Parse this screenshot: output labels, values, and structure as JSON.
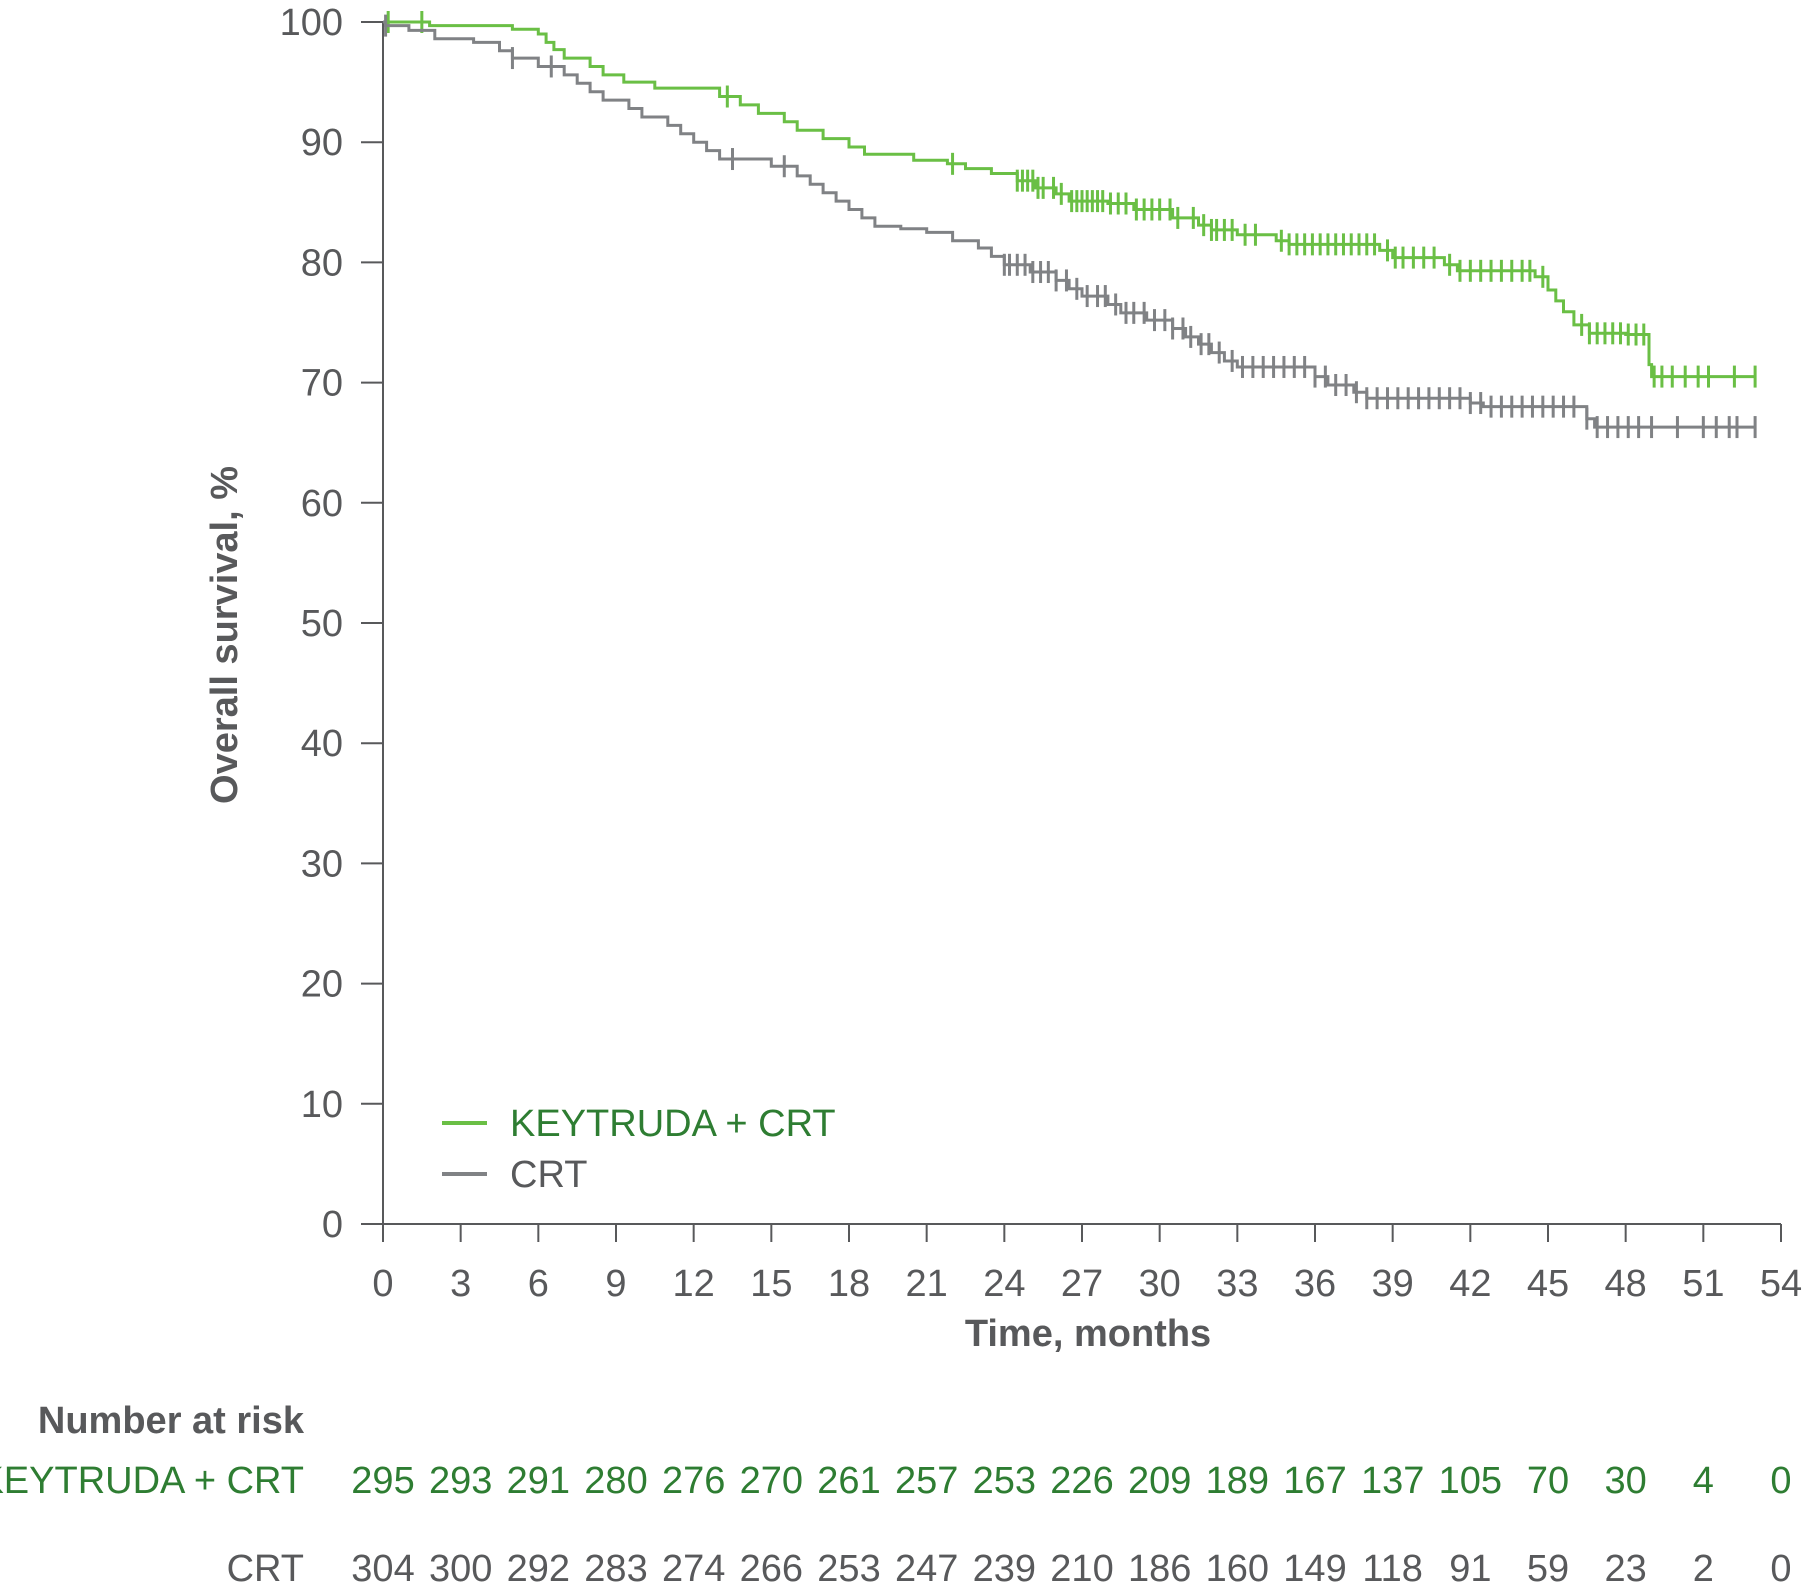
{
  "chart_data": {
    "type": "line",
    "title": "",
    "xlabel": "Time, months",
    "ylabel": "Overall survival, %",
    "xlim": [
      0,
      54
    ],
    "ylim": [
      0,
      100
    ],
    "xticks": [
      0,
      3,
      6,
      9,
      12,
      15,
      18,
      21,
      24,
      27,
      30,
      33,
      36,
      39,
      42,
      45,
      48,
      51,
      54
    ],
    "yticks": [
      0,
      10,
      20,
      30,
      40,
      50,
      60,
      70,
      80,
      90,
      100
    ],
    "legend": {
      "placement": "bottom-left"
    },
    "series": [
      {
        "name": "KEYTRUDA + CRT",
        "color": "#6abf45",
        "steps": [
          [
            0,
            100
          ],
          [
            1.5,
            100
          ],
          [
            1.8,
            99.7
          ],
          [
            5,
            99.4
          ],
          [
            6,
            99
          ],
          [
            6.3,
            98.3
          ],
          [
            6.6,
            97.7
          ],
          [
            7,
            97
          ],
          [
            8,
            96.3
          ],
          [
            8.5,
            95.6
          ],
          [
            9.3,
            95
          ],
          [
            10.5,
            94.5
          ],
          [
            13,
            93.8
          ],
          [
            13.8,
            93.1
          ],
          [
            14.5,
            92.4
          ],
          [
            15.5,
            91.7
          ],
          [
            16,
            91
          ],
          [
            17,
            90.3
          ],
          [
            18,
            89.6
          ],
          [
            18.6,
            89
          ],
          [
            20.5,
            88.5
          ],
          [
            21.8,
            88.2
          ],
          [
            22.5,
            87.8
          ],
          [
            23.5,
            87.4
          ],
          [
            24.5,
            86.8
          ],
          [
            25.2,
            86.2
          ],
          [
            26,
            85.7
          ],
          [
            26.5,
            85.1
          ],
          [
            28,
            84.9
          ],
          [
            29,
            84.4
          ],
          [
            30.5,
            83.7
          ],
          [
            31.5,
            83.1
          ],
          [
            32,
            82.7
          ],
          [
            33,
            82.3
          ],
          [
            34.5,
            81.8
          ],
          [
            35,
            81.5
          ],
          [
            38.5,
            81
          ],
          [
            39,
            80.4
          ],
          [
            41,
            79.8
          ],
          [
            41.5,
            79.3
          ],
          [
            44.5,
            78.8
          ],
          [
            45,
            77.7
          ],
          [
            45.3,
            76.8
          ],
          [
            45.6,
            75.9
          ],
          [
            46,
            74.8
          ],
          [
            46.6,
            74.1
          ],
          [
            48,
            74
          ],
          [
            48.9,
            71.5
          ],
          [
            49,
            70.5
          ],
          [
            53,
            70.5
          ]
        ],
        "censor": [
          0.2,
          1.5,
          13.3,
          22,
          24.5,
          24.7,
          24.9,
          25.1,
          25.3,
          25.5,
          25.9,
          26.2,
          26.6,
          26.8,
          27.0,
          27.2,
          27.4,
          27.6,
          27.8,
          28.1,
          28.4,
          28.7,
          29.1,
          29.4,
          29.7,
          30.0,
          30.4,
          30.7,
          31.3,
          31.7,
          32.0,
          32.2,
          32.5,
          32.8,
          33.3,
          33.7,
          34.7,
          35.0,
          35.3,
          35.6,
          35.9,
          36.2,
          36.5,
          36.8,
          37.1,
          37.4,
          37.7,
          38.0,
          38.3,
          38.8,
          39.1,
          39.4,
          39.8,
          40.2,
          40.6,
          41.2,
          41.6,
          42.0,
          42.4,
          42.8,
          43.2,
          43.6,
          44.0,
          44.3,
          44.8,
          46.3,
          46.6,
          46.9,
          47.2,
          47.5,
          47.8,
          48.1,
          48.4,
          48.7,
          49.1,
          49.4,
          49.8,
          50.3,
          50.8,
          51.2,
          52.2,
          53.0
        ]
      },
      {
        "name": "CRT",
        "color": "#808285",
        "steps": [
          [
            0,
            100
          ],
          [
            0.1,
            99.7
          ],
          [
            1,
            99.3
          ],
          [
            2,
            98.6
          ],
          [
            3.5,
            98.3
          ],
          [
            4.5,
            97.6
          ],
          [
            5,
            97
          ],
          [
            6,
            96.3
          ],
          [
            7,
            95.6
          ],
          [
            7.5,
            94.9
          ],
          [
            8,
            94.2
          ],
          [
            8.5,
            93.5
          ],
          [
            9.5,
            92.8
          ],
          [
            10,
            92.1
          ],
          [
            11,
            91.4
          ],
          [
            11.5,
            90.7
          ],
          [
            12,
            90
          ],
          [
            12.5,
            89.3
          ],
          [
            13,
            88.6
          ],
          [
            15,
            88
          ],
          [
            16,
            87.2
          ],
          [
            16.5,
            86.5
          ],
          [
            17,
            85.8
          ],
          [
            17.5,
            85.1
          ],
          [
            18,
            84.4
          ],
          [
            18.5,
            83.7
          ],
          [
            19,
            83
          ],
          [
            20,
            82.8
          ],
          [
            21,
            82.5
          ],
          [
            22,
            81.8
          ],
          [
            23,
            81.2
          ],
          [
            23.5,
            80.5
          ],
          [
            24,
            79.8
          ],
          [
            25,
            79.2
          ],
          [
            26,
            78.5
          ],
          [
            26.5,
            77.8
          ],
          [
            27,
            77.2
          ],
          [
            28,
            76.5
          ],
          [
            28.5,
            75.8
          ],
          [
            29.5,
            75.2
          ],
          [
            30.5,
            74.5
          ],
          [
            31,
            73.8
          ],
          [
            31.5,
            73.2
          ],
          [
            32,
            72.5
          ],
          [
            32.5,
            71.8
          ],
          [
            33,
            71.3
          ],
          [
            36,
            70.5
          ],
          [
            36.5,
            69.8
          ],
          [
            37.5,
            69.2
          ],
          [
            38,
            68.7
          ],
          [
            42,
            68.3
          ],
          [
            42.5,
            68
          ],
          [
            46.5,
            67
          ],
          [
            46.8,
            66.3
          ],
          [
            53,
            66.3
          ]
        ],
        "censor": [
          0.1,
          5,
          6.5,
          13.5,
          15.5,
          24,
          24.2,
          24.5,
          24.8,
          25.1,
          25.4,
          25.7,
          26.0,
          26.4,
          26.8,
          27.2,
          27.6,
          27.9,
          28.3,
          28.7,
          29.0,
          29.4,
          29.8,
          30.2,
          30.5,
          30.9,
          31.2,
          31.6,
          31.9,
          32.3,
          32.8,
          33.2,
          33.6,
          34.0,
          34.4,
          34.8,
          35.2,
          35.6,
          36.0,
          36.4,
          36.8,
          37.2,
          37.6,
          38.0,
          38.4,
          38.8,
          39.2,
          39.6,
          40.0,
          40.4,
          40.8,
          41.2,
          41.6,
          42.0,
          42.4,
          42.8,
          43.2,
          43.6,
          44.0,
          44.4,
          44.8,
          45.2,
          45.6,
          46.0,
          46.5,
          46.9,
          47.3,
          47.7,
          48.1,
          48.5,
          49.0,
          50.0,
          51.0,
          51.5,
          52.0,
          52.3,
          53.0
        ]
      }
    ]
  },
  "risk_table": {
    "title": "Number at risk",
    "rows": [
      {
        "label": "KEYTRUDA + CRT",
        "values": [
          "295",
          "293",
          "291",
          "280",
          "276",
          "270",
          "261",
          "257",
          "253",
          "226",
          "209",
          "189",
          "167",
          "137",
          "105",
          "70",
          "30",
          "4",
          "0"
        ]
      },
      {
        "label": "CRT",
        "values": [
          "304",
          "300",
          "292",
          "283",
          "274",
          "266",
          "253",
          "247",
          "239",
          "210",
          "186",
          "160",
          "149",
          "118",
          "91",
          "59",
          "23",
          "2",
          "0"
        ]
      }
    ]
  },
  "colors": {
    "keytruda_line": "#6abf45",
    "crt_line": "#808285",
    "keytruda_text": "#2e7d32",
    "gray_text": "#58595b",
    "axis": "#58595b"
  }
}
